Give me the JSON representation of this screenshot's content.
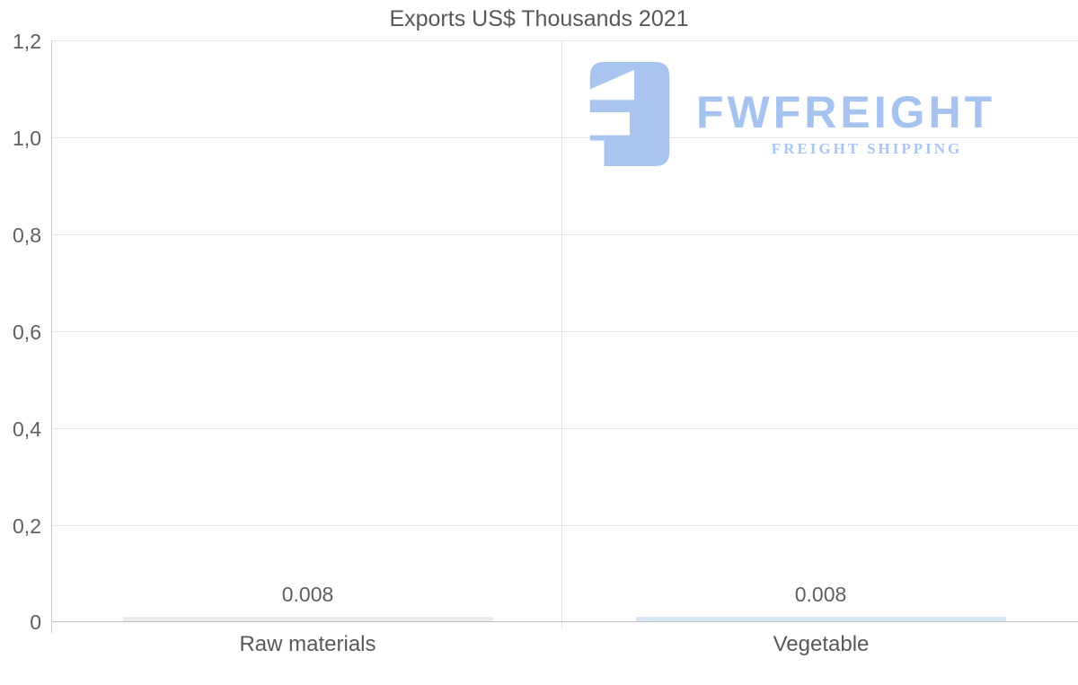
{
  "chart_data": {
    "type": "bar",
    "title": "Exports US$ Thousands 2021",
    "categories": [
      "Raw materials",
      "Vegetable"
    ],
    "values": [
      0.008,
      0.008
    ],
    "value_labels": [
      "0.008",
      "0.008"
    ],
    "ylim": [
      0,
      1.2
    ],
    "ytick_labels": [
      "1,2",
      "1,0",
      "0,8",
      "0,6",
      "0,4",
      "0,2",
      "0"
    ],
    "xlabel": "",
    "ylabel": "",
    "grid": true,
    "legend": false,
    "bar_colors": [
      "#ededed",
      "#d7e6f5"
    ]
  },
  "watermark": {
    "brand": "FWFREIGHT",
    "tagline": "FREIGHT SHIPPING",
    "color": "#a9c4ee"
  }
}
